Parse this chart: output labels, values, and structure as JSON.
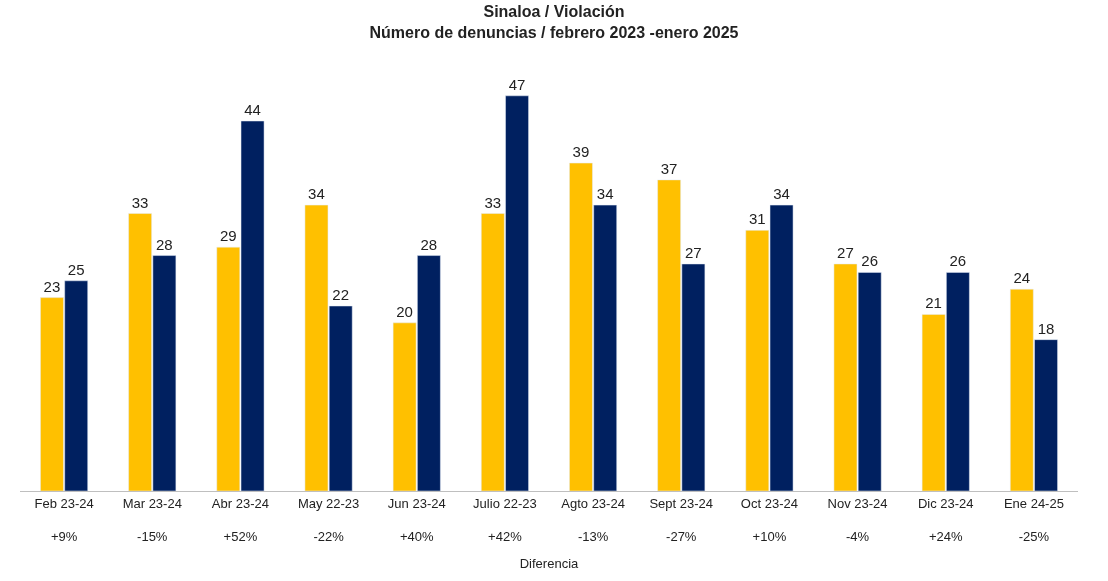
{
  "chart_data": {
    "type": "bar",
    "title": "Sinaloa / Violación",
    "subtitle": "Número de denuncias / febrero 2023 -enero 2025",
    "xlabel": "Diferencia",
    "categories": [
      "Feb 23-24\n+9%",
      "Mar 23-24\n-15%",
      "Abr 23-24\n+52%",
      "May 22-23\n-22%",
      "Jun 23-24\n+40%",
      "Julio 22-23\n+42%",
      "Agto 23-24\n-13%",
      "Sept 23-24\n-27%",
      "Oct 23-24\n+10%",
      "Nov 23-24\n-4%",
      "Dic 23-24\n+24%",
      "Ene 24-25\n-25%"
    ],
    "series": [
      {
        "color": "#ffc000",
        "values": [
          23,
          33,
          29,
          34,
          20,
          33,
          39,
          37,
          31,
          27,
          21,
          24
        ]
      },
      {
        "color": "#002060",
        "values": [
          25,
          28,
          44,
          22,
          28,
          47,
          34,
          27,
          34,
          26,
          26,
          18
        ]
      }
    ],
    "data_labels": true,
    "tick_labels": "x"
  }
}
